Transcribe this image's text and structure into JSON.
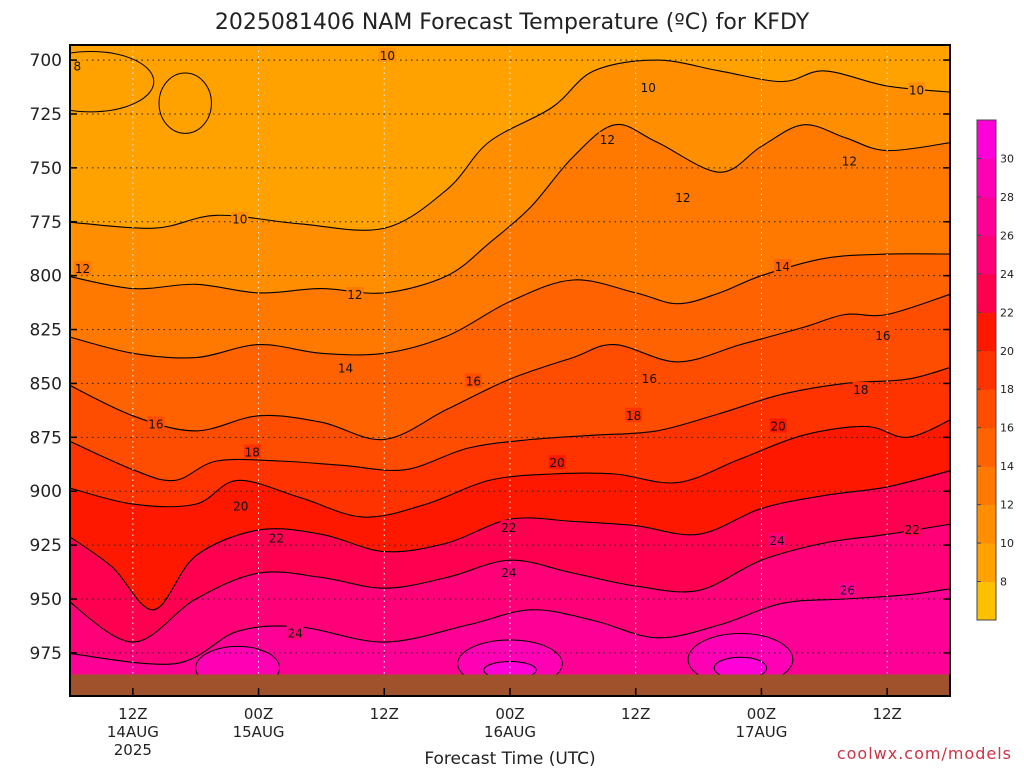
{
  "chart_data": {
    "type": "heatmap",
    "title": "2025081406 NAM Forecast Temperature (ºC) for KFDY",
    "xlabel": "Forecast Time (UTC)",
    "ylabel": "",
    "credit": "coolwx.com/models",
    "y_axis": {
      "unit": "hPa",
      "reversed": true,
      "range": [
        693,
        995
      ],
      "ticks": [
        700,
        725,
        750,
        775,
        800,
        825,
        850,
        875,
        900,
        925,
        950,
        975
      ],
      "tick_labels": [
        "700",
        "725",
        "750",
        "775",
        "800",
        "825",
        "850",
        "875",
        "900",
        "925",
        "950",
        "975"
      ],
      "surface_pressure": 985,
      "grid": "dotted"
    },
    "x_axis": {
      "unit": "UTC",
      "start": "2025-08-14T06Z",
      "end": "2025-08-17T18Z",
      "range_hours": [
        6,
        90
      ],
      "ticks": [
        {
          "hour": 12,
          "label": "12Z",
          "date": "14AUG",
          "year": "2025"
        },
        {
          "hour": 24,
          "label": "00Z",
          "date": "15AUG",
          "year": ""
        },
        {
          "hour": 36,
          "label": "12Z",
          "date": "",
          "year": ""
        },
        {
          "hour": 48,
          "label": "00Z",
          "date": "16AUG",
          "year": ""
        },
        {
          "hour": 60,
          "label": "12Z",
          "date": "",
          "year": ""
        },
        {
          "hour": 72,
          "label": "00Z",
          "date": "17AUG",
          "year": ""
        },
        {
          "hour": 84,
          "label": "12Z",
          "date": "",
          "year": ""
        }
      ],
      "grid": "dotted"
    },
    "colorbar": {
      "levels": [
        6,
        8,
        10,
        12,
        14,
        16,
        18,
        20,
        22,
        24,
        26,
        28,
        30,
        32
      ],
      "labels": [
        "8",
        "10",
        "12",
        "14",
        "16",
        "18",
        "20",
        "22",
        "24",
        "26",
        "28",
        "30"
      ],
      "colors": [
        "#ffc000",
        "#ffa200",
        "#ff8f00",
        "#ff7800",
        "#ff6200",
        "#ff4d00",
        "#ff3300",
        "#ff1800",
        "#ff0050",
        "#ff0078",
        "#ff0096",
        "#ff00b4",
        "#ff00d8"
      ]
    },
    "isotherms": [
      {
        "value": 10,
        "label": "10",
        "points": [
          [
            6,
            775
          ],
          [
            14,
            778
          ],
          [
            20,
            772
          ],
          [
            28,
            776
          ],
          [
            36,
            778
          ],
          [
            42,
            760
          ],
          [
            46,
            738
          ],
          [
            52,
            722
          ],
          [
            56,
            705
          ],
          [
            62,
            700
          ],
          [
            68,
            705
          ],
          [
            74,
            710
          ],
          [
            78,
            705
          ],
          [
            84,
            712
          ],
          [
            90,
            715
          ]
        ]
      },
      {
        "value": 12,
        "label": "12",
        "points": [
          [
            6,
            800
          ],
          [
            12,
            806
          ],
          [
            18,
            804
          ],
          [
            24,
            808
          ],
          [
            30,
            806
          ],
          [
            36,
            808
          ],
          [
            42,
            800
          ],
          [
            46,
            785
          ],
          [
            50,
            768
          ],
          [
            54,
            745
          ],
          [
            58,
            730
          ],
          [
            62,
            738
          ],
          [
            68,
            752
          ],
          [
            72,
            740
          ],
          [
            76,
            730
          ],
          [
            80,
            736
          ],
          [
            84,
            742
          ],
          [
            90,
            738
          ]
        ]
      },
      {
        "value": 14,
        "label": "14",
        "points": [
          [
            6,
            828
          ],
          [
            12,
            836
          ],
          [
            18,
            838
          ],
          [
            24,
            832
          ],
          [
            30,
            836
          ],
          [
            36,
            836
          ],
          [
            42,
            828
          ],
          [
            48,
            812
          ],
          [
            54,
            802
          ],
          [
            60,
            808
          ],
          [
            64,
            813
          ],
          [
            68,
            808
          ],
          [
            72,
            800
          ],
          [
            78,
            792
          ],
          [
            84,
            790
          ],
          [
            90,
            790
          ]
        ]
      },
      {
        "value": 16,
        "label": "16",
        "points": [
          [
            6,
            850
          ],
          [
            12,
            865
          ],
          [
            18,
            872
          ],
          [
            24,
            865
          ],
          [
            30,
            868
          ],
          [
            36,
            876
          ],
          [
            42,
            862
          ],
          [
            48,
            848
          ],
          [
            54,
            838
          ],
          [
            58,
            832
          ],
          [
            64,
            840
          ],
          [
            70,
            832
          ],
          [
            76,
            824
          ],
          [
            80,
            818
          ],
          [
            84,
            818
          ],
          [
            90,
            808
          ]
        ]
      },
      {
        "value": 18,
        "label": "18",
        "points": [
          [
            6,
            876
          ],
          [
            12,
            890
          ],
          [
            16,
            895
          ],
          [
            20,
            886
          ],
          [
            26,
            886
          ],
          [
            32,
            888
          ],
          [
            38,
            890
          ],
          [
            44,
            880
          ],
          [
            50,
            876
          ],
          [
            56,
            874
          ],
          [
            62,
            872
          ],
          [
            68,
            864
          ],
          [
            74,
            855
          ],
          [
            80,
            850
          ],
          [
            86,
            848
          ],
          [
            90,
            842
          ]
        ]
      },
      {
        "value": 20,
        "label": "20",
        "points": [
          [
            6,
            898
          ],
          [
            12,
            906
          ],
          [
            18,
            906
          ],
          [
            22,
            895
          ],
          [
            28,
            903
          ],
          [
            34,
            912
          ],
          [
            40,
            906
          ],
          [
            46,
            895
          ],
          [
            52,
            892
          ],
          [
            58,
            892
          ],
          [
            64,
            896
          ],
          [
            70,
            885
          ],
          [
            76,
            874
          ],
          [
            82,
            870
          ],
          [
            86,
            875
          ],
          [
            90,
            866
          ]
        ]
      },
      {
        "value": 22,
        "label": "22",
        "points": [
          [
            6,
            920
          ],
          [
            10,
            935
          ],
          [
            14,
            955
          ],
          [
            18,
            930
          ],
          [
            24,
            918
          ],
          [
            30,
            920
          ],
          [
            36,
            928
          ],
          [
            42,
            924
          ],
          [
            48,
            913
          ],
          [
            54,
            914
          ],
          [
            60,
            916
          ],
          [
            66,
            920
          ],
          [
            72,
            908
          ],
          [
            78,
            902
          ],
          [
            84,
            898
          ],
          [
            90,
            890
          ]
        ]
      },
      {
        "value": 24,
        "label": "24",
        "points": [
          [
            6,
            950
          ],
          [
            12,
            970
          ],
          [
            18,
            950
          ],
          [
            24,
            938
          ],
          [
            30,
            940
          ],
          [
            36,
            945
          ],
          [
            42,
            940
          ],
          [
            48,
            932
          ],
          [
            54,
            938
          ],
          [
            60,
            944
          ],
          [
            66,
            946
          ],
          [
            72,
            932
          ],
          [
            78,
            924
          ],
          [
            84,
            920
          ],
          [
            90,
            915
          ]
        ]
      },
      {
        "value": 26,
        "label": "26",
        "points": [
          [
            6,
            975
          ],
          [
            16,
            980
          ],
          [
            22,
            965
          ],
          [
            28,
            963
          ],
          [
            36,
            970
          ],
          [
            44,
            962
          ],
          [
            50,
            955
          ],
          [
            56,
            960
          ],
          [
            62,
            968
          ],
          [
            68,
            962
          ],
          [
            74,
            952
          ],
          [
            80,
            950
          ],
          [
            86,
            948
          ],
          [
            90,
            945
          ]
        ]
      }
    ],
    "contour_labels": [
      {
        "text": "8",
        "x": 6.7,
        "y": 703
      },
      {
        "text": "10",
        "x": 36.3,
        "y": 698
      },
      {
        "text": "10",
        "x": 61.2,
        "y": 713
      },
      {
        "text": "10",
        "x": 86.8,
        "y": 714
      },
      {
        "text": "10",
        "x": 22.2,
        "y": 774
      },
      {
        "text": "12",
        "x": 7.2,
        "y": 797
      },
      {
        "text": "12",
        "x": 57.3,
        "y": 737
      },
      {
        "text": "12",
        "x": 64.5,
        "y": 764
      },
      {
        "text": "12",
        "x": 80.4,
        "y": 747
      },
      {
        "text": "12",
        "x": 33.2,
        "y": 809
      },
      {
        "text": "14",
        "x": 32.3,
        "y": 843
      },
      {
        "text": "14",
        "x": 74.0,
        "y": 796
      },
      {
        "text": "16",
        "x": 44.5,
        "y": 849
      },
      {
        "text": "16",
        "x": 61.3,
        "y": 848
      },
      {
        "text": "16",
        "x": 83.6,
        "y": 828
      },
      {
        "text": "16",
        "x": 14.2,
        "y": 869
      },
      {
        "text": "18",
        "x": 23.4,
        "y": 882
      },
      {
        "text": "18",
        "x": 59.8,
        "y": 865
      },
      {
        "text": "18",
        "x": 81.5,
        "y": 853
      },
      {
        "text": "20",
        "x": 22.3,
        "y": 907
      },
      {
        "text": "20",
        "x": 52.5,
        "y": 887
      },
      {
        "text": "20",
        "x": 73.6,
        "y": 870
      },
      {
        "text": "22",
        "x": 25.7,
        "y": 922
      },
      {
        "text": "22",
        "x": 47.9,
        "y": 917
      },
      {
        "text": "22",
        "x": 86.4,
        "y": 918
      },
      {
        "text": "24",
        "x": 47.9,
        "y": 938
      },
      {
        "text": "24",
        "x": 73.5,
        "y": 923
      },
      {
        "text": "24",
        "x": 27.5,
        "y": 966
      },
      {
        "text": "26",
        "x": 80.2,
        "y": 946
      }
    ],
    "warm_cores": [
      {
        "value": 28,
        "x": 22,
        "y": 982,
        "rx": 4,
        "ry": 10
      },
      {
        "value": 28,
        "x": 48,
        "y": 980,
        "rx": 5,
        "ry": 11
      },
      {
        "value": 28,
        "x": 70,
        "y": 978,
        "rx": 5,
        "ry": 12
      },
      {
        "value": 30,
        "x": 48,
        "y": 983,
        "rx": 2.5,
        "ry": 4
      },
      {
        "value": 30,
        "x": 70,
        "y": 982,
        "rx": 2.5,
        "ry": 5
      }
    ],
    "cool_pockets": [
      {
        "value": 8,
        "x": 8,
        "y": 710,
        "rx": 6,
        "ry": 14
      },
      {
        "value": 8,
        "x": 17,
        "y": 720,
        "rx": 2.5,
        "ry": 14
      }
    ]
  }
}
